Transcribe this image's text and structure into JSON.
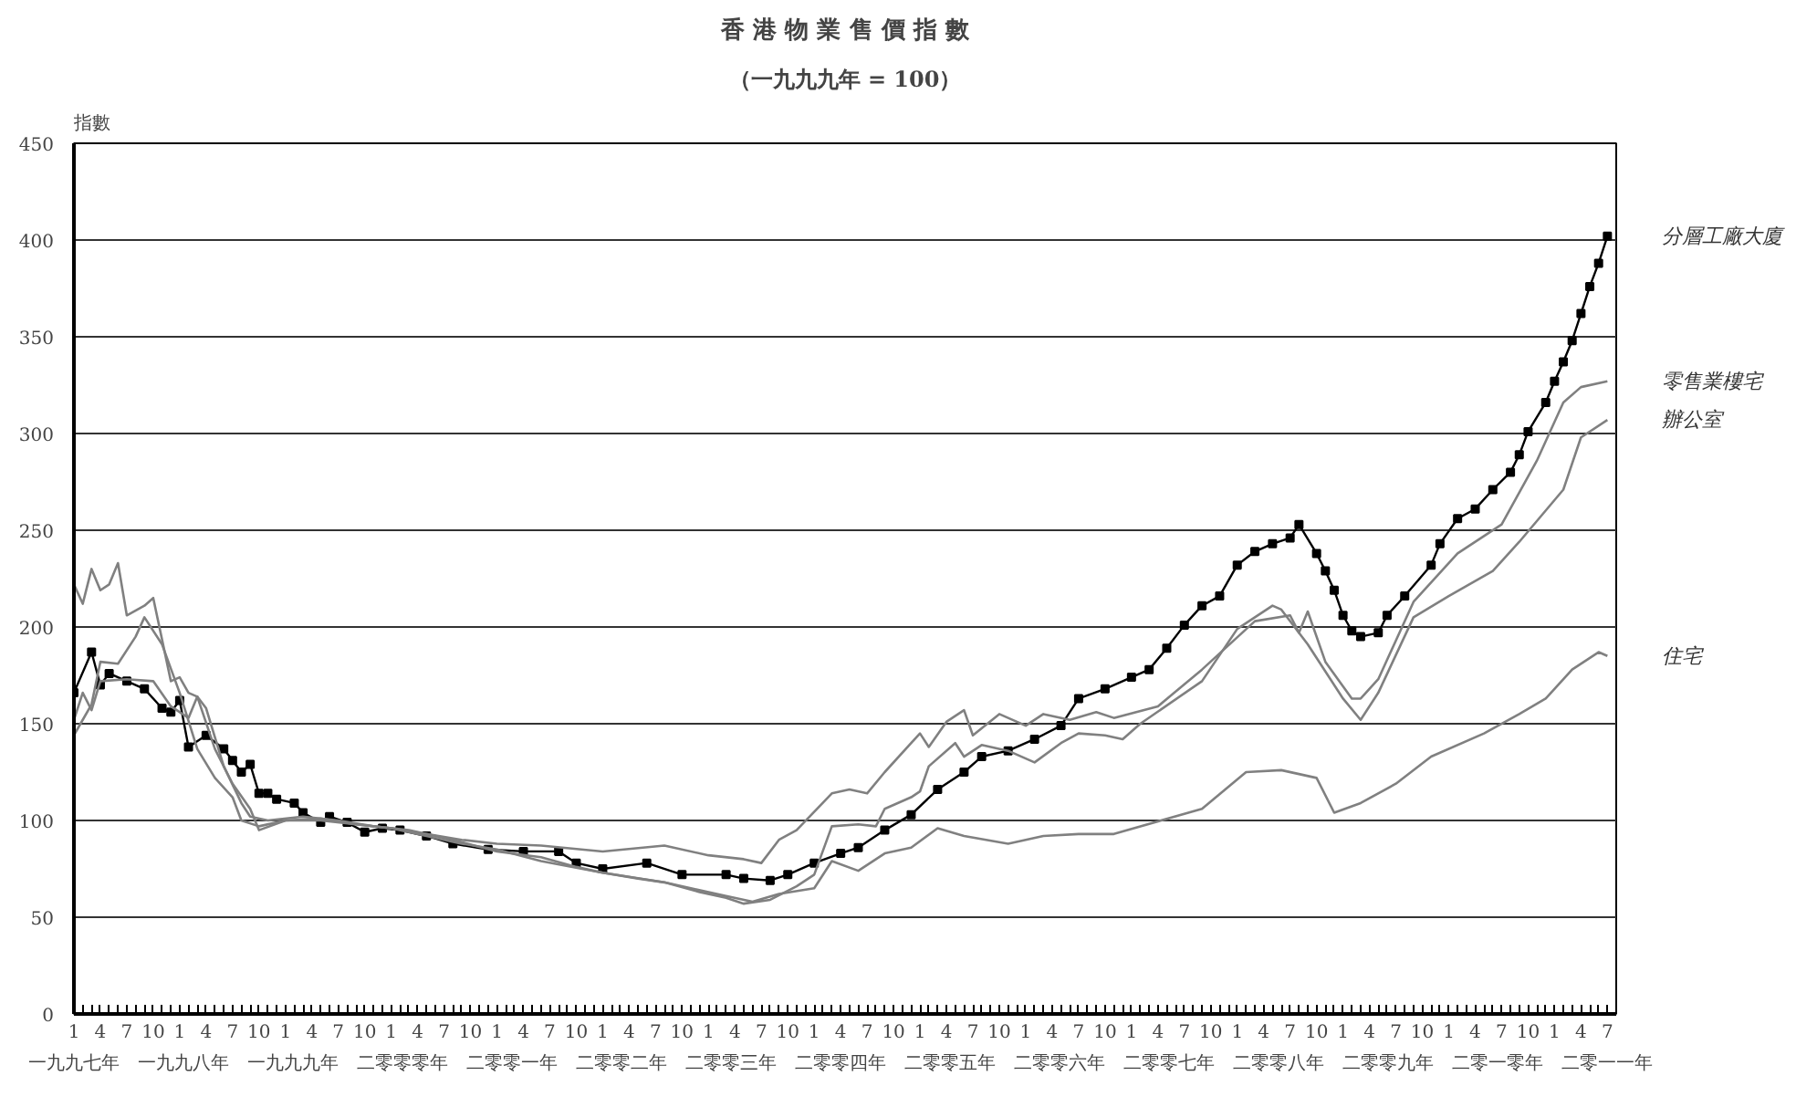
{
  "chart_data": {
    "type": "line",
    "title": "香 港 物 業 售 價 指 數",
    "subtitle": "（一九九九年 = 100）",
    "ylabel": "指數",
    "xlim": [
      "1997-01",
      "2011-08"
    ],
    "ylim": [
      0,
      450
    ],
    "yticks": [
      0,
      50,
      100,
      150,
      200,
      250,
      300,
      350,
      400,
      450
    ],
    "grid": "y",
    "xticks": [
      {
        "value": "1997-01",
        "label": "1"
      },
      {
        "value": "1997-04",
        "label": "4"
      },
      {
        "value": "1997-07",
        "label": "7"
      },
      {
        "value": "1997-10",
        "label": "10"
      },
      {
        "value": "1998-01",
        "label": "1"
      },
      {
        "value": "1998-04",
        "label": "4"
      },
      {
        "value": "1998-07",
        "label": "7"
      },
      {
        "value": "1998-10",
        "label": "10"
      },
      {
        "value": "1999-01",
        "label": "1"
      },
      {
        "value": "1999-04",
        "label": "4"
      },
      {
        "value": "1999-07",
        "label": "7"
      },
      {
        "value": "1999-10",
        "label": "10"
      },
      {
        "value": "2000-01",
        "label": "1"
      },
      {
        "value": "2000-04",
        "label": "4"
      },
      {
        "value": "2000-07",
        "label": "7"
      },
      {
        "value": "2000-10",
        "label": "10"
      },
      {
        "value": "2001-01",
        "label": "1"
      },
      {
        "value": "2001-04",
        "label": "4"
      },
      {
        "value": "2001-07",
        "label": "7"
      },
      {
        "value": "2001-10",
        "label": "10"
      },
      {
        "value": "2002-01",
        "label": "1"
      },
      {
        "value": "2002-04",
        "label": "4"
      },
      {
        "value": "2002-07",
        "label": "7"
      },
      {
        "value": "2002-10",
        "label": "10"
      },
      {
        "value": "2003-01",
        "label": "1"
      },
      {
        "value": "2003-04",
        "label": "4"
      },
      {
        "value": "2003-07",
        "label": "7"
      },
      {
        "value": "2003-10",
        "label": "10"
      },
      {
        "value": "2004-01",
        "label": "1"
      },
      {
        "value": "2004-04",
        "label": "4"
      },
      {
        "value": "2004-07",
        "label": "7"
      },
      {
        "value": "2004-10",
        "label": "10"
      },
      {
        "value": "2005-01",
        "label": "1"
      },
      {
        "value": "2005-04",
        "label": "4"
      },
      {
        "value": "2005-07",
        "label": "7"
      },
      {
        "value": "2005-10",
        "label": "10"
      },
      {
        "value": "2006-01",
        "label": "1"
      },
      {
        "value": "2006-04",
        "label": "4"
      },
      {
        "value": "2006-07",
        "label": "7"
      },
      {
        "value": "2006-10",
        "label": "10"
      },
      {
        "value": "2007-01",
        "label": "1"
      },
      {
        "value": "2007-04",
        "label": "4"
      },
      {
        "value": "2007-07",
        "label": "7"
      },
      {
        "value": "2007-10",
        "label": "10"
      },
      {
        "value": "2008-01",
        "label": "1"
      },
      {
        "value": "2008-04",
        "label": "4"
      },
      {
        "value": "2008-07",
        "label": "7"
      },
      {
        "value": "2008-10",
        "label": "10"
      },
      {
        "value": "2009-01",
        "label": "1"
      },
      {
        "value": "2009-04",
        "label": "4"
      },
      {
        "value": "2009-07",
        "label": "7"
      },
      {
        "value": "2009-10",
        "label": "10"
      },
      {
        "value": "2010-01",
        "label": "1"
      },
      {
        "value": "2010-04",
        "label": "4"
      },
      {
        "value": "2010-07",
        "label": "7"
      },
      {
        "value": "2010-10",
        "label": "10"
      },
      {
        "value": "2011-01",
        "label": "1"
      },
      {
        "value": "2011-04",
        "label": "4"
      },
      {
        "value": "2011-07",
        "label": "7"
      }
    ],
    "annotations": [
      "一九九七年",
      "一九九八年",
      "一九九九年",
      "二零零零年",
      "二零零一年",
      "二零零二年",
      "二零零三年",
      "二零零四年",
      "二零零五年",
      "二零零六年",
      "二零零七年",
      "二零零八年",
      "二零零九年",
      "二零一零年",
      "二零一一年"
    ],
    "series": [
      {
        "name": "分層工廠大廈",
        "color": "#000000",
        "marker": "square",
        "x": [
          "1997-01",
          "1997-03",
          "1997-04",
          "1997-05",
          "1997-07",
          "1997-09",
          "1997-11",
          "1997-12",
          "1998-01",
          "1998-02",
          "1998-04",
          "1998-06",
          "1998-07",
          "1998-08",
          "1998-09",
          "1998-10",
          "1998-11",
          "1998-12",
          "1999-02",
          "1999-03",
          "1999-05",
          "1999-06",
          "1999-08",
          "1999-10",
          "1999-12",
          "2000-02",
          "2000-05",
          "2000-08",
          "2000-12",
          "2001-04",
          "2001-08",
          "2001-10",
          "2002-01",
          "2002-06",
          "2002-10",
          "2003-03",
          "2003-05",
          "2003-08",
          "2003-10",
          "2004-01",
          "2004-04",
          "2004-06",
          "2004-09",
          "2004-12",
          "2005-03",
          "2005-06",
          "2005-08",
          "2005-11",
          "2006-02",
          "2006-05",
          "2006-07",
          "2006-10",
          "2007-01",
          "2007-03",
          "2007-05",
          "2007-07",
          "2007-09",
          "2007-11",
          "2008-01",
          "2008-03",
          "2008-05",
          "2008-07",
          "2008-08",
          "2008-10",
          "2008-11",
          "2008-12",
          "2009-01",
          "2009-02",
          "2009-03",
          "2009-05",
          "2009-06",
          "2009-08",
          "2009-11",
          "2009-12",
          "2010-02",
          "2010-04",
          "2010-06",
          "2010-08",
          "2010-09",
          "2010-10",
          "2010-12",
          "2011-01",
          "2011-02",
          "2011-03",
          "2011-04",
          "2011-05",
          "2011-06",
          "2011-07"
        ],
        "values": [
          166,
          187,
          170,
          176,
          172,
          168,
          158,
          156,
          162,
          138,
          144,
          137,
          131,
          125,
          129,
          114,
          114,
          111,
          109,
          104,
          99,
          102,
          99,
          94,
          96,
          95,
          92,
          88,
          85,
          84,
          84,
          78,
          75,
          78,
          72,
          72,
          70,
          69,
          72,
          78,
          83,
          86,
          95,
          103,
          116,
          125,
          133,
          136,
          142,
          149,
          163,
          168,
          174,
          178,
          189,
          201,
          211,
          216,
          232,
          239,
          243,
          246,
          253,
          238,
          229,
          219,
          206,
          198,
          195,
          197,
          206,
          216,
          232,
          243,
          256,
          261,
          271,
          280,
          289,
          301,
          316,
          327,
          337,
          348,
          362,
          376,
          388,
          402
        ]
      },
      {
        "name": "零售業樓宅",
        "color": "#808080",
        "x": [
          "1997-01",
          "1997-02",
          "1997-03",
          "1997-04",
          "1997-06",
          "1997-08",
          "1997-09",
          "1997-11",
          "1998-01",
          "1998-03",
          "1998-05",
          "1998-07",
          "1998-08",
          "1998-10",
          "1999-01",
          "1999-05",
          "1999-09",
          "2000-01",
          "2000-05",
          "2000-09",
          "2001-01",
          "2001-06",
          "2002-01",
          "2002-08",
          "2003-01",
          "2003-05",
          "2003-07",
          "2003-09",
          "2003-11",
          "2004-03",
          "2004-05",
          "2004-07",
          "2004-09",
          "2004-12",
          "2005-01",
          "2005-02",
          "2005-04",
          "2005-06",
          "2005-07",
          "2005-10",
          "2006-01",
          "2006-03",
          "2006-06",
          "2006-09",
          "2006-11",
          "2007-04",
          "2007-09",
          "2008-03",
          "2008-07",
          "2008-08",
          "2008-09",
          "2008-11",
          "2009-02",
          "2009-03",
          "2009-05",
          "2009-09",
          "2010-02",
          "2010-07",
          "2010-11",
          "2011-02",
          "2011-04",
          "2011-07"
        ],
        "values": [
          144,
          152,
          160,
          182,
          181,
          195,
          205,
          191,
          166,
          137,
          122,
          112,
          100,
          97,
          100,
          101,
          98,
          96,
          93,
          90,
          88,
          87,
          84,
          87,
          82,
          80,
          78,
          90,
          95,
          114,
          116,
          114,
          125,
          140,
          145,
          138,
          151,
          157,
          144,
          155,
          149,
          155,
          152,
          156,
          153,
          159,
          178,
          203,
          206,
          197,
          208,
          182,
          163,
          163,
          173,
          213,
          238,
          253,
          286,
          316,
          324,
          327
        ]
      },
      {
        "name": "辦公室",
        "color": "#808080",
        "x": [
          "1997-01",
          "1997-02",
          "1997-03",
          "1997-04",
          "1997-05",
          "1997-06",
          "1997-07",
          "1997-09",
          "1997-10",
          "1997-12",
          "1998-01",
          "1998-02",
          "1998-03",
          "1998-04",
          "1998-06",
          "1998-08",
          "1998-09",
          "1998-11",
          "1999-03",
          "1999-07",
          "1999-11",
          "2000-03",
          "2000-08",
          "2001-01",
          "2001-06",
          "2001-10",
          "2002-01",
          "2002-05",
          "2002-08",
          "2002-12",
          "2003-03",
          "2003-05",
          "2003-08",
          "2003-11",
          "2004-01",
          "2004-03",
          "2004-06",
          "2004-08",
          "2004-09",
          "2004-12",
          "2005-01",
          "2005-02",
          "2005-05",
          "2005-06",
          "2005-08",
          "2005-11",
          "2006-02",
          "2006-05",
          "2006-07",
          "2006-10",
          "2006-12",
          "2007-02",
          "2007-09",
          "2008-01",
          "2008-05",
          "2008-06",
          "2008-09",
          "2009-01",
          "2009-03",
          "2009-05",
          "2009-09",
          "2010-01",
          "2010-06",
          "2010-09",
          "2011-02",
          "2011-04",
          "2011-07"
        ],
        "values": [
          222,
          212,
          230,
          219,
          222,
          233,
          206,
          211,
          215,
          172,
          174,
          166,
          164,
          158,
          128,
          109,
          102,
          100,
          102,
          100,
          97,
          95,
          90,
          84,
          81,
          76,
          73,
          70,
          68,
          63,
          60,
          57,
          59,
          66,
          72,
          97,
          98,
          97,
          106,
          112,
          115,
          128,
          140,
          133,
          139,
          136,
          130,
          140,
          145,
          144,
          142,
          150,
          172,
          199,
          211,
          209,
          191,
          163,
          152,
          166,
          205,
          216,
          229,
          244,
          271,
          298,
          307
        ]
      },
      {
        "name": "住宅",
        "color": "#808080",
        "x": [
          "1997-01",
          "1997-02",
          "1997-03",
          "1997-04",
          "1997-07",
          "1997-10",
          "1997-12",
          "1998-02",
          "1998-03",
          "1998-05",
          "1998-07",
          "1998-09",
          "1998-10",
          "1999-01",
          "1999-05",
          "1999-09",
          "2000-01",
          "2000-05",
          "2000-09",
          "2001-01",
          "2001-06",
          "2002-01",
          "2002-08",
          "2003-03",
          "2003-06",
          "2003-09",
          "2004-01",
          "2004-03",
          "2004-06",
          "2004-09",
          "2004-12",
          "2005-03",
          "2005-06",
          "2005-11",
          "2006-03",
          "2006-07",
          "2006-11",
          "2007-09",
          "2008-02",
          "2008-06",
          "2008-10",
          "2008-12",
          "2009-03",
          "2009-07",
          "2009-11",
          "2010-05",
          "2010-09",
          "2010-12",
          "2011-03",
          "2011-06",
          "2011-07"
        ],
        "values": [
          152,
          166,
          157,
          172,
          173,
          172,
          159,
          153,
          164,
          137,
          119,
          106,
          95,
          100,
          100,
          98,
          96,
          92,
          88,
          85,
          79,
          73,
          68,
          61,
          58,
          62,
          65,
          79,
          74,
          83,
          86,
          96,
          92,
          88,
          92,
          93,
          93,
          106,
          125,
          126,
          122,
          104,
          109,
          119,
          133,
          145,
          155,
          163,
          178,
          187,
          185
        ]
      }
    ]
  }
}
